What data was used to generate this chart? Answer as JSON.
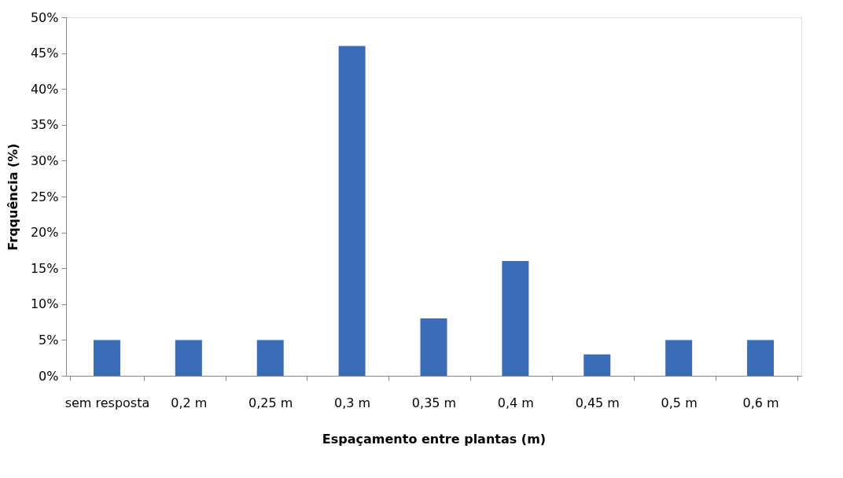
{
  "chart_data": {
    "type": "bar",
    "xlabel": "Espaçamento entre plantas (m)",
    "ylabel": "Frqquência (%)",
    "categories": [
      "sem resposta",
      "0,2 m",
      "0,25 m",
      "0,3 m",
      "0,35 m",
      "0,4 m",
      "0,45 m",
      "0,5 m",
      "0,6 m"
    ],
    "values": [
      5,
      5,
      5,
      46,
      8,
      16,
      3,
      5,
      5
    ],
    "color": "#3a6db6",
    "ylim": [
      0,
      50
    ],
    "yticks": [
      {
        "value": 0,
        "label": "0%"
      },
      {
        "value": 5,
        "label": "5%"
      },
      {
        "value": 10,
        "label": "10%"
      },
      {
        "value": 15,
        "label": "15%"
      },
      {
        "value": 20,
        "label": "20%"
      },
      {
        "value": 25,
        "label": "25%"
      },
      {
        "value": 30,
        "label": "30%"
      },
      {
        "value": 35,
        "label": "35%"
      },
      {
        "value": 40,
        "label": "40%"
      },
      {
        "value": 45,
        "label": "45%"
      },
      {
        "value": 50,
        "label": "50%"
      }
    ],
    "grid": false
  }
}
